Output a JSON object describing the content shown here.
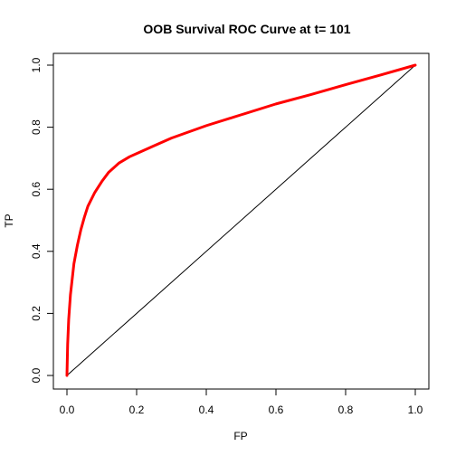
{
  "chart_data": {
    "type": "line",
    "title": "OOB Survival ROC Curve at t= 101",
    "xlabel": "FP",
    "ylabel": "TP",
    "xlim": [
      0,
      1
    ],
    "ylim": [
      0,
      1
    ],
    "x_ticks": [
      "0.0",
      "0.2",
      "0.4",
      "0.6",
      "0.8",
      "1.0"
    ],
    "y_ticks": [
      "0.0",
      "0.2",
      "0.4",
      "0.6",
      "0.8",
      "1.0"
    ],
    "grid": false,
    "series": [
      {
        "color": "#ff0000",
        "x": [
          0,
          0.002,
          0.005,
          0.01,
          0.02,
          0.03,
          0.04,
          0.05,
          0.06,
          0.08,
          0.1,
          0.12,
          0.15,
          0.18,
          0.2,
          0.25,
          0.3,
          0.35,
          0.4,
          0.5,
          0.6,
          0.7,
          0.8,
          0.9,
          1.0
        ],
        "y": [
          0,
          0.1,
          0.18,
          0.26,
          0.36,
          0.42,
          0.47,
          0.51,
          0.545,
          0.59,
          0.625,
          0.655,
          0.685,
          0.705,
          0.715,
          0.74,
          0.765,
          0.785,
          0.805,
          0.84,
          0.875,
          0.905,
          0.937,
          0.968,
          1.0
        ]
      }
    ],
    "reference_line": {
      "color": "#000000",
      "x": [
        0,
        1
      ],
      "y": [
        0,
        1
      ]
    }
  }
}
